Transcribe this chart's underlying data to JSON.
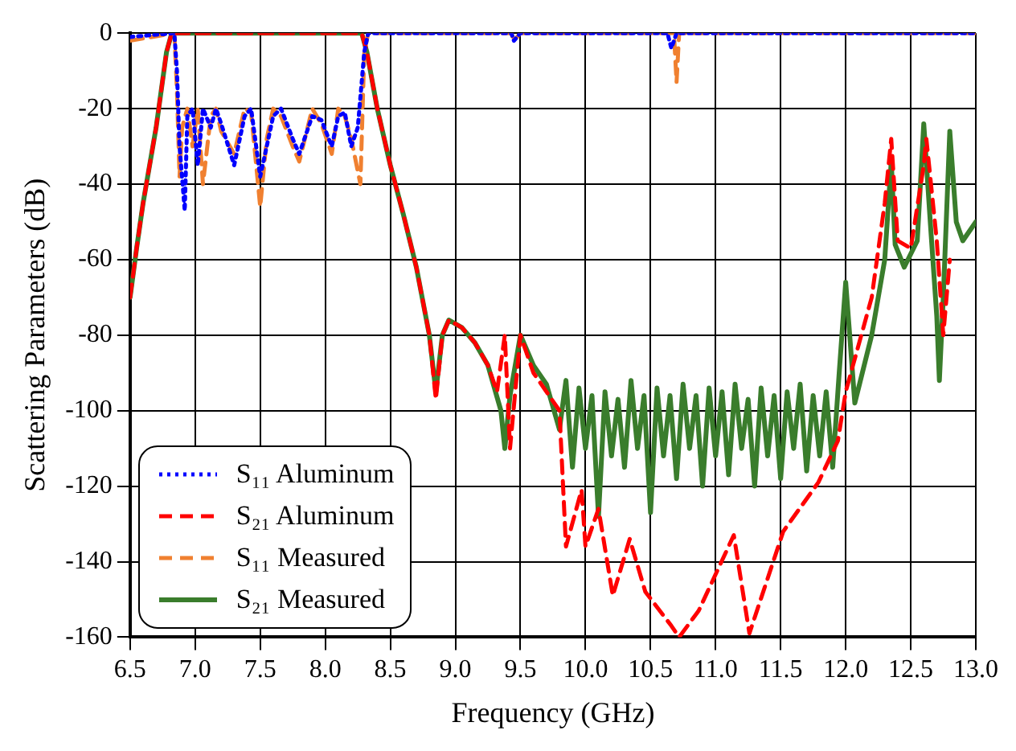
{
  "chart_data": {
    "type": "line",
    "xlabel": "Frequency (GHz)",
    "ylabel": "Scattering Parameters (dB)",
    "xlim": [
      6.5,
      13.0
    ],
    "ylim": [
      -160,
      0
    ],
    "xticks": [
      {
        "value": 6.5,
        "label": "6.5"
      },
      {
        "value": 7,
        "label": "7.0"
      },
      {
        "value": 7.5,
        "label": "7.5"
      },
      {
        "value": 8,
        "label": "8.0"
      },
      {
        "value": 8.5,
        "label": "8.5"
      },
      {
        "value": 9,
        "label": "9.0"
      },
      {
        "value": 9.5,
        "label": "9.5"
      },
      {
        "value": 10,
        "label": "10.0"
      },
      {
        "value": 10.5,
        "label": "10.5"
      },
      {
        "value": 11,
        "label": "11.0"
      },
      {
        "value": 11.5,
        "label": "11.5"
      },
      {
        "value": 12,
        "label": "12.0"
      },
      {
        "value": 12.5,
        "label": "12.5"
      },
      {
        "value": 13,
        "label": "13.0"
      }
    ],
    "yticks": [
      -160,
      -140,
      -120,
      -100,
      -80,
      -60,
      -40,
      -20,
      0
    ],
    "grid": true,
    "legend": "bottom left",
    "marker": "none",
    "series": [
      {
        "name": "S₁₁ Aluminum",
        "color": "#0000ff",
        "line_style": "dotted",
        "x": [
          6.5,
          6.84,
          6.86,
          6.88,
          6.92,
          6.94,
          6.98,
          7.02,
          7.06,
          7.12,
          7.16,
          7.2,
          7.3,
          7.38,
          7.43,
          7.5,
          7.55,
          7.6,
          7.66,
          7.75,
          7.8,
          7.9,
          7.97,
          8.05,
          8.1,
          8.15,
          8.2,
          8.25,
          8.3,
          8.33,
          9.43,
          9.45,
          9.5,
          10.63,
          10.66,
          10.7,
          13.0
        ],
        "values": [
          -1,
          0,
          -10,
          -30,
          -47,
          -22,
          -20,
          -35,
          -20,
          -25,
          -20,
          -24,
          -35,
          -22,
          -20,
          -38,
          -30,
          -22,
          -20,
          -28,
          -32,
          -22,
          -23,
          -30,
          -22,
          -21,
          -30,
          -25,
          -5,
          0,
          0,
          -2,
          0,
          0,
          -4,
          0,
          0
        ]
      },
      {
        "name": "S₂₁ Aluminum",
        "color": "#ff0000",
        "line_style": "dashed",
        "x": [
          6.5,
          6.55,
          6.6,
          6.7,
          6.78,
          6.82,
          8.28,
          8.32,
          8.4,
          8.5,
          8.6,
          8.7,
          8.8,
          8.85,
          8.9,
          8.95,
          9.05,
          9.15,
          9.25,
          9.32,
          9.38,
          9.42,
          9.5,
          9.6,
          9.8,
          9.85,
          9.97,
          10.0,
          10.1,
          10.21,
          10.34,
          10.46,
          10.66,
          10.72,
          10.87,
          11.14,
          11.26,
          11.52,
          11.79,
          11.94,
          12.0,
          12.2,
          12.3,
          12.35,
          12.4,
          12.5,
          12.6,
          12.62,
          12.7,
          12.75,
          12.8
        ],
        "values": [
          -70,
          -57,
          -45,
          -25,
          -5,
          0,
          0,
          -5,
          -20,
          -35,
          -48,
          -62,
          -80,
          -97,
          -80,
          -76,
          -78,
          -82,
          -88,
          -95,
          -80,
          -110,
          -80,
          -90,
          -100,
          -136,
          -121,
          -136,
          -126,
          -149,
          -134,
          -148,
          -157,
          -160,
          -153,
          -133,
          -159,
          -132,
          -119,
          -108,
          -95,
          -70,
          -45,
          -28,
          -55,
          -57,
          -35,
          -28,
          -55,
          -80,
          -60
        ]
      },
      {
        "name": "S₁₁ Measured",
        "color": "#f08030",
        "line_style": "dashed",
        "x": [
          6.5,
          6.84,
          6.86,
          6.88,
          6.9,
          6.94,
          6.98,
          7.02,
          7.06,
          7.12,
          7.16,
          7.2,
          7.3,
          7.38,
          7.43,
          7.5,
          7.55,
          7.6,
          7.66,
          7.75,
          7.8,
          7.9,
          7.97,
          8.05,
          8.1,
          8.15,
          8.2,
          8.27,
          8.3,
          8.33,
          9.43,
          9.45,
          9.5,
          10.68,
          10.7,
          10.72,
          13.0
        ],
        "values": [
          -2,
          0,
          -15,
          -38,
          -25,
          -20,
          -30,
          -20,
          -40,
          -22,
          -20,
          -26,
          -32,
          -20,
          -21,
          -46,
          -28,
          -20,
          -22,
          -30,
          -34,
          -20,
          -24,
          -32,
          -20,
          -22,
          -28,
          -40,
          -5,
          0,
          0,
          -2,
          0,
          0,
          -13,
          0,
          0
        ]
      },
      {
        "name": "S₂₁ Measured",
        "color": "#3a7d2c",
        "line_style": "solid",
        "x": [
          6.5,
          6.55,
          6.6,
          6.7,
          6.78,
          6.82,
          8.28,
          8.32,
          8.4,
          8.5,
          8.6,
          8.7,
          8.8,
          8.85,
          8.9,
          8.95,
          9.05,
          9.15,
          9.25,
          9.35,
          9.38,
          9.42,
          9.5,
          9.6,
          9.7,
          9.8,
          9.85,
          9.9,
          9.95,
          10.0,
          10.05,
          10.1,
          10.15,
          10.2,
          10.25,
          10.3,
          10.35,
          10.4,
          10.45,
          10.5,
          10.55,
          10.6,
          10.65,
          10.7,
          10.75,
          10.8,
          10.85,
          10.9,
          10.95,
          11.0,
          11.05,
          11.1,
          11.15,
          11.2,
          11.25,
          11.3,
          11.35,
          11.4,
          11.45,
          11.5,
          11.55,
          11.6,
          11.65,
          11.7,
          11.75,
          11.8,
          11.85,
          11.9,
          11.95,
          12.0,
          12.07,
          12.2,
          12.3,
          12.35,
          12.38,
          12.45,
          12.55,
          12.6,
          12.65,
          12.7,
          12.72,
          12.75,
          12.8,
          12.85,
          12.9,
          13.0
        ],
        "values": [
          -70,
          -57,
          -45,
          -25,
          -5,
          0,
          0,
          -5,
          -20,
          -35,
          -48,
          -62,
          -80,
          -95,
          -80,
          -76,
          -78,
          -82,
          -88,
          -100,
          -110,
          -96,
          -80,
          -88,
          -93,
          -105,
          -92,
          -115,
          -94,
          -110,
          -96,
          -128,
          -95,
          -112,
          -97,
          -115,
          -92,
          -110,
          -96,
          -127,
          -94,
          -112,
          -96,
          -118,
          -93,
          -110,
          -96,
          -120,
          -94,
          -112,
          -95,
          -117,
          -93,
          -110,
          -97,
          -120,
          -94,
          -112,
          -96,
          -118,
          -95,
          -110,
          -93,
          -116,
          -96,
          -112,
          -95,
          -115,
          -90,
          -66,
          -98,
          -80,
          -60,
          -34,
          -56,
          -62,
          -55,
          -24,
          -50,
          -75,
          -92,
          -70,
          -26,
          -50,
          -55,
          -50
        ]
      }
    ]
  }
}
